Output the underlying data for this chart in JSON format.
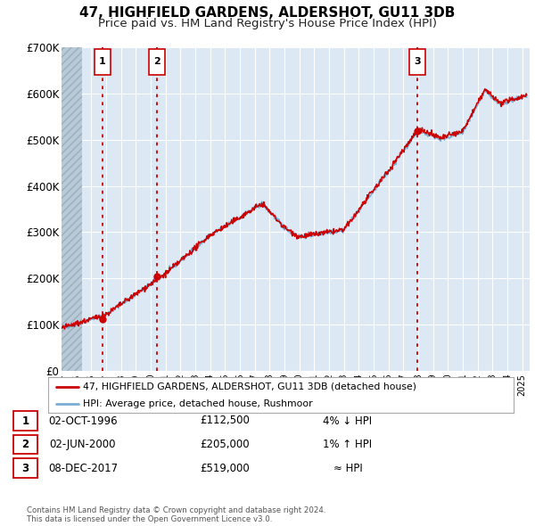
{
  "title": "47, HIGHFIELD GARDENS, ALDERSHOT, GU11 3DB",
  "subtitle": "Price paid vs. HM Land Registry's House Price Index (HPI)",
  "ylim": [
    0,
    700000
  ],
  "yticks": [
    0,
    100000,
    200000,
    300000,
    400000,
    500000,
    600000,
    700000
  ],
  "ytick_labels": [
    "£0",
    "£100K",
    "£200K",
    "£300K",
    "£400K",
    "£500K",
    "£600K",
    "£700K"
  ],
  "xlim_start": 1994.0,
  "xlim_end": 2025.5,
  "sale_color": "#cc0000",
  "hpi_color": "#7aadd4",
  "sale_label": "47, HIGHFIELD GARDENS, ALDERSHOT, GU11 3DB (detached house)",
  "hpi_label": "HPI: Average price, detached house, Rushmoor",
  "transactions": [
    {
      "num": 1,
      "date": 1996.75,
      "price": 112500,
      "note": "4% ↓ HPI",
      "date_str": "02-OCT-1996",
      "price_str": "£112,500"
    },
    {
      "num": 2,
      "date": 2000.42,
      "price": 205000,
      "note": "1% ↑ HPI",
      "date_str": "02-JUN-2000",
      "price_str": "£205,000"
    },
    {
      "num": 3,
      "date": 2017.92,
      "price": 519000,
      "note": "≈ HPI",
      "date_str": "08-DEC-2017",
      "price_str": "£519,000"
    }
  ],
  "background_color": "#ffffff",
  "plot_bg_color": "#dce9f5",
  "grid_color": "#ffffff",
  "footnote": "Contains HM Land Registry data © Crown copyright and database right 2024.\nThis data is licensed under the Open Government Licence v3.0.",
  "title_fontsize": 11,
  "subtitle_fontsize": 9.5
}
